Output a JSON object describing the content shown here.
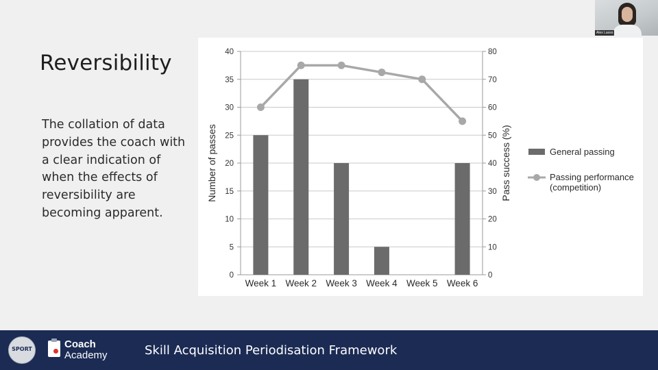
{
  "slide": {
    "title": "Reversibility",
    "body": "The collation of data\nprovides the coach with\na clear indication of\nwhen the effects of\nreversibility are\nbecoming apparent."
  },
  "footer": {
    "logo_text": "SPORT",
    "brand_line1": "Coach",
    "brand_line2": "Academy",
    "title": "Skill Acquisition Periodisation Framework"
  },
  "webcam": {
    "name": "Alex Lasso"
  },
  "chart_data": {
    "type": "bar",
    "categories": [
      "Week 1",
      "Week 2",
      "Week 3",
      "Week 4",
      "Week 5",
      "Week 6"
    ],
    "series": [
      {
        "name": "General passing",
        "type": "bar",
        "axis": "left",
        "values": [
          25,
          35,
          20,
          5,
          0,
          20
        ],
        "color": "#6b6b6b"
      },
      {
        "name": "Passing performance (competition)",
        "legend_lines": [
          "Passing performance",
          "(competition)"
        ],
        "type": "line",
        "axis": "right",
        "values": [
          60,
          75,
          75,
          72.5,
          70,
          55
        ],
        "color": "#a8a8a8"
      }
    ],
    "ylabel": "Number of passes",
    "y2label": "Pass success (%)",
    "ylim": [
      0,
      40
    ],
    "y2lim": [
      0,
      80
    ],
    "yticks": [
      0,
      5,
      10,
      15,
      20,
      25,
      30,
      35,
      40
    ],
    "y2ticks": [
      0,
      10,
      20,
      30,
      40,
      50,
      60,
      70,
      80
    ],
    "grid": true,
    "legend_position": "right"
  }
}
